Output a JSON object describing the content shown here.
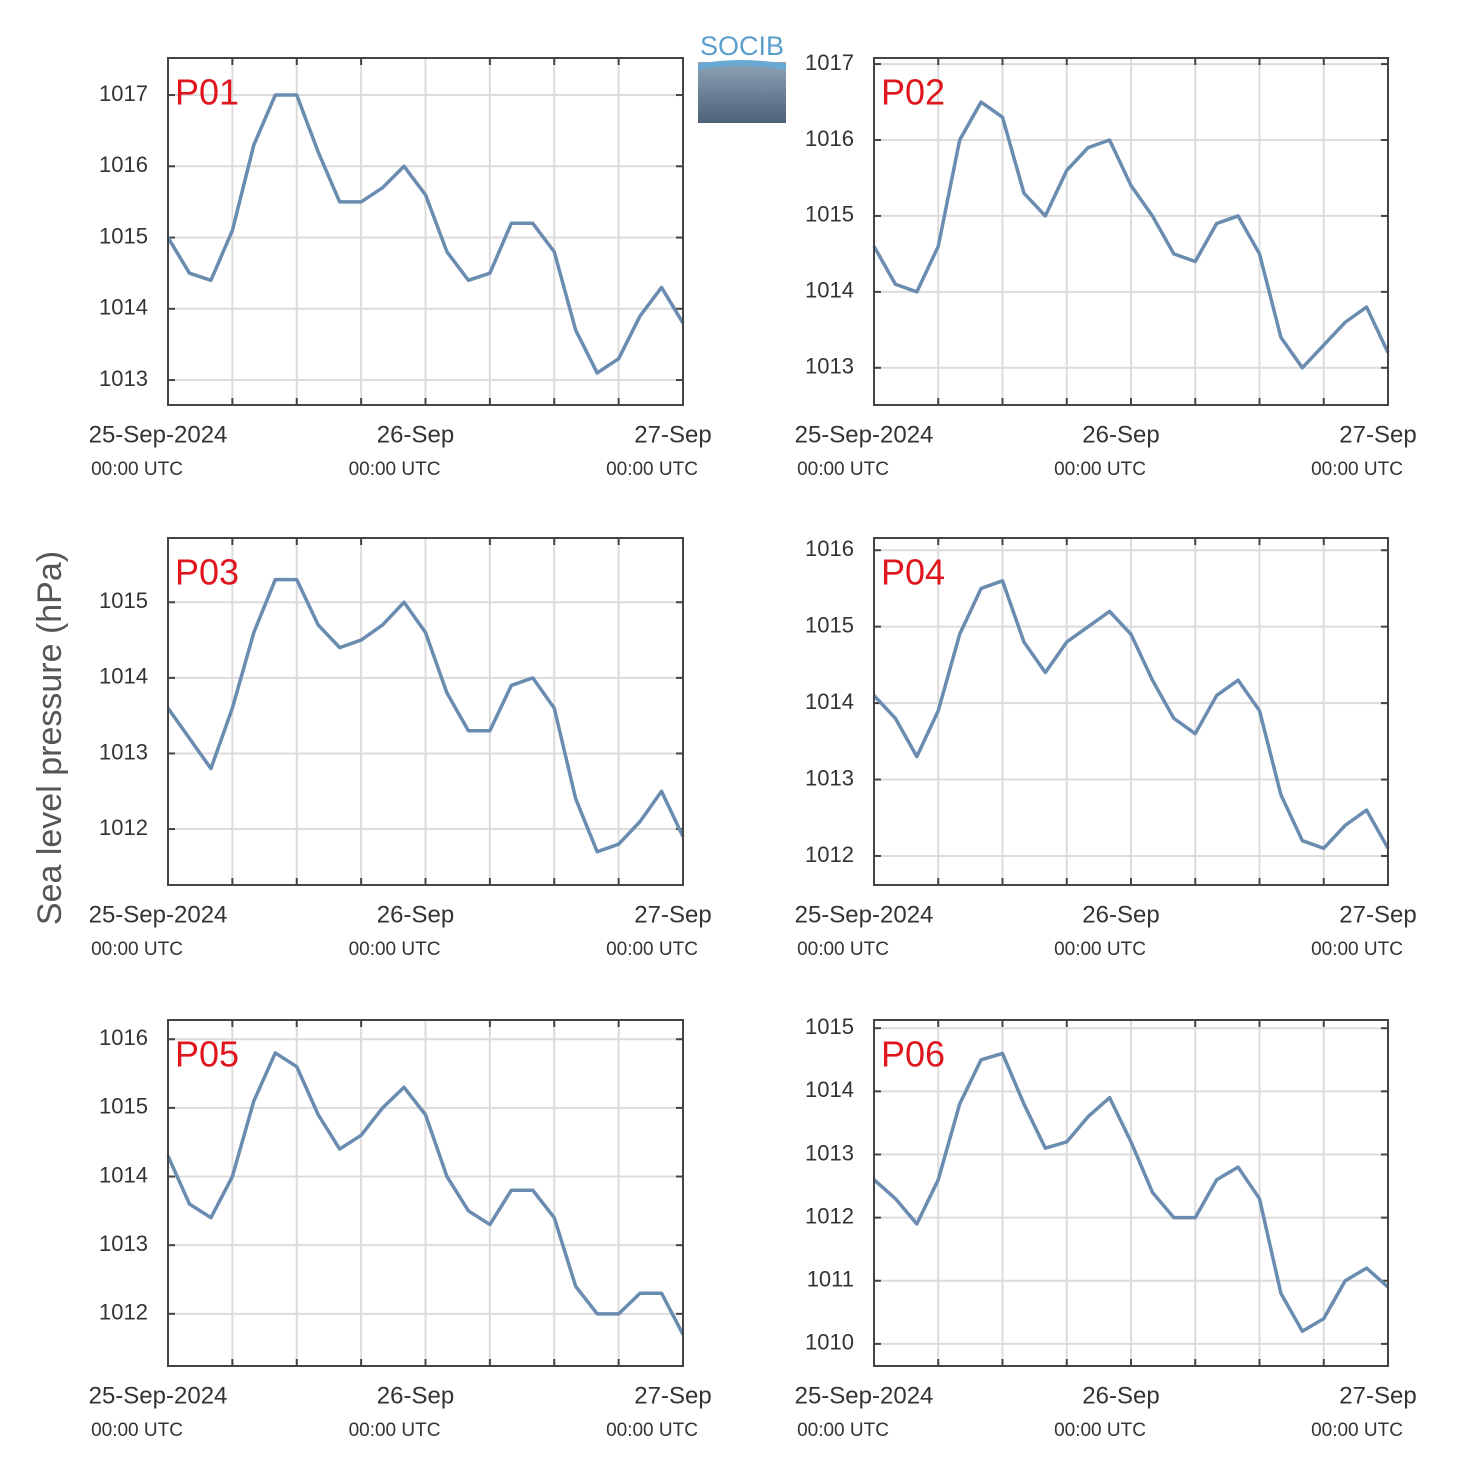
{
  "logo": "SOCIB",
  "ylabel": "Sea level pressure (hPa)",
  "chart_data": [
    {
      "type": "line",
      "title": "P01",
      "color": "#6a8cb0",
      "grid": true,
      "x": [
        0,
        2,
        4,
        6,
        8,
        10,
        12,
        14,
        16,
        18,
        20,
        22,
        24,
        26,
        28,
        30,
        32,
        34,
        36,
        38,
        40,
        42,
        44,
        46,
        48
      ],
      "values": [
        1015.0,
        1014.5,
        1014.4,
        1015.1,
        1016.3,
        1017.0,
        1017.0,
        1016.2,
        1015.5,
        1015.5,
        1015.7,
        1016.0,
        1015.6,
        1014.8,
        1014.4,
        1014.5,
        1015.2,
        1015.2,
        1014.8,
        1013.7,
        1013.1,
        1013.3,
        1013.9,
        1014.3,
        1013.8
      ],
      "xlim": [
        0,
        48
      ],
      "xticks": [
        {
          "value": 0,
          "label": "25-Sep-2024"
        },
        {
          "value": 24,
          "label": "26-Sep"
        },
        {
          "value": 48,
          "label": "27-Sep"
        }
      ],
      "xtick_sublabels": [
        "00:00 UTC",
        "00:00 UTC",
        "00:00 UTC"
      ],
      "xminor_grid": [
        6,
        12,
        18,
        30,
        36,
        42
      ],
      "ylim": [
        1012.65,
        1017.52
      ],
      "yticks": [
        1013,
        1014,
        1015,
        1016,
        1017
      ]
    },
    {
      "type": "line",
      "title": "P02",
      "color": "#6a8cb0",
      "grid": true,
      "x": [
        0,
        2,
        4,
        6,
        8,
        10,
        12,
        14,
        16,
        18,
        20,
        22,
        24,
        26,
        28,
        30,
        32,
        34,
        36,
        38,
        40,
        42,
        44,
        46,
        48
      ],
      "values": [
        1014.6,
        1014.1,
        1014.0,
        1014.6,
        1016.0,
        1016.5,
        1016.3,
        1015.3,
        1015.0,
        1015.6,
        1015.9,
        1016.0,
        1015.4,
        1015.0,
        1014.5,
        1014.4,
        1014.9,
        1015.0,
        1014.5,
        1013.4,
        1013.0,
        1013.3,
        1013.6,
        1013.8,
        1013.2
      ],
      "xlim": [
        0,
        48
      ],
      "xticks": [
        {
          "value": 0,
          "label": "25-Sep-2024"
        },
        {
          "value": 24,
          "label": "26-Sep"
        },
        {
          "value": 48,
          "label": "27-Sep"
        }
      ],
      "xtick_sublabels": [
        "00:00 UTC",
        "00:00 UTC",
        "00:00 UTC"
      ],
      "xminor_grid": [
        6,
        12,
        18,
        30,
        36,
        42
      ],
      "ylim": [
        1012.51,
        1017.08
      ],
      "yticks": [
        1013,
        1014,
        1015,
        1016,
        1017
      ]
    },
    {
      "type": "line",
      "title": "P03",
      "color": "#6a8cb0",
      "grid": true,
      "x": [
        0,
        2,
        4,
        6,
        8,
        10,
        12,
        14,
        16,
        18,
        20,
        22,
        24,
        26,
        28,
        30,
        32,
        34,
        36,
        38,
        40,
        42,
        44,
        46,
        48
      ],
      "values": [
        1013.6,
        1013.2,
        1012.8,
        1013.6,
        1014.6,
        1015.3,
        1015.3,
        1014.7,
        1014.4,
        1014.5,
        1014.7,
        1015.0,
        1014.6,
        1013.8,
        1013.3,
        1013.3,
        1013.9,
        1014.0,
        1013.6,
        1012.4,
        1011.7,
        1011.8,
        1012.1,
        1012.5,
        1011.9
      ],
      "xlim": [
        0,
        48
      ],
      "xticks": [
        {
          "value": 0,
          "label": "25-Sep-2024"
        },
        {
          "value": 24,
          "label": "26-Sep"
        },
        {
          "value": 48,
          "label": "27-Sep"
        }
      ],
      "xtick_sublabels": [
        "00:00 UTC",
        "00:00 UTC",
        "00:00 UTC"
      ],
      "xminor_grid": [
        6,
        12,
        18,
        30,
        36,
        42
      ],
      "ylim": [
        1011.26,
        1015.85
      ],
      "yticks": [
        1012,
        1013,
        1014,
        1015
      ]
    },
    {
      "type": "line",
      "title": "P04",
      "color": "#6a8cb0",
      "grid": true,
      "x": [
        0,
        2,
        4,
        6,
        8,
        10,
        12,
        14,
        16,
        18,
        20,
        22,
        24,
        26,
        28,
        30,
        32,
        34,
        36,
        38,
        40,
        42,
        44,
        46,
        48
      ],
      "values": [
        1014.1,
        1013.8,
        1013.3,
        1013.9,
        1014.9,
        1015.5,
        1015.6,
        1014.8,
        1014.4,
        1014.8,
        1015.0,
        1015.2,
        1014.9,
        1014.3,
        1013.8,
        1013.6,
        1014.1,
        1014.3,
        1013.9,
        1012.8,
        1012.2,
        1012.1,
        1012.4,
        1012.6,
        1012.1
      ],
      "xlim": [
        0,
        48
      ],
      "xticks": [
        {
          "value": 0,
          "label": "25-Sep-2024"
        },
        {
          "value": 24,
          "label": "26-Sep"
        },
        {
          "value": 48,
          "label": "27-Sep"
        }
      ],
      "xtick_sublabels": [
        "00:00 UTC",
        "00:00 UTC",
        "00:00 UTC"
      ],
      "xminor_grid": [
        6,
        12,
        18,
        30,
        36,
        42
      ],
      "ylim": [
        1011.62,
        1016.16
      ],
      "yticks": [
        1012,
        1013,
        1014,
        1015,
        1016
      ]
    },
    {
      "type": "line",
      "title": "P05",
      "color": "#6a8cb0",
      "grid": true,
      "x": [
        0,
        2,
        4,
        6,
        8,
        10,
        12,
        14,
        16,
        18,
        20,
        22,
        24,
        26,
        28,
        30,
        32,
        34,
        36,
        38,
        40,
        42,
        44,
        46,
        48
      ],
      "values": [
        1014.3,
        1013.6,
        1013.4,
        1014.0,
        1015.1,
        1015.8,
        1015.6,
        1014.9,
        1014.4,
        1014.6,
        1015.0,
        1015.3,
        1014.9,
        1014.0,
        1013.5,
        1013.3,
        1013.8,
        1013.8,
        1013.4,
        1012.4,
        1012.0,
        1012.0,
        1012.3,
        1012.3,
        1011.7
      ],
      "xlim": [
        0,
        48
      ],
      "xticks": [
        {
          "value": 0,
          "label": "25-Sep-2024"
        },
        {
          "value": 24,
          "label": "26-Sep"
        },
        {
          "value": 48,
          "label": "27-Sep"
        }
      ],
      "xtick_sublabels": [
        "00:00 UTC",
        "00:00 UTC",
        "00:00 UTC"
      ],
      "xminor_grid": [
        6,
        12,
        18,
        30,
        36,
        42
      ],
      "ylim": [
        1011.24,
        1016.28
      ],
      "yticks": [
        1012,
        1013,
        1014,
        1015,
        1016
      ]
    },
    {
      "type": "line",
      "title": "P06",
      "color": "#6a8cb0",
      "grid": true,
      "x": [
        0,
        2,
        4,
        6,
        8,
        10,
        12,
        14,
        16,
        18,
        20,
        22,
        24,
        26,
        28,
        30,
        32,
        34,
        36,
        38,
        40,
        42,
        44,
        46,
        48
      ],
      "values": [
        1012.6,
        1012.3,
        1011.9,
        1012.6,
        1013.8,
        1014.5,
        1014.6,
        1013.8,
        1013.1,
        1013.2,
        1013.6,
        1013.9,
        1013.2,
        1012.4,
        1012.0,
        1012.0,
        1012.6,
        1012.8,
        1012.3,
        1010.8,
        1010.2,
        1010.4,
        1011.0,
        1011.2,
        1010.9
      ],
      "xlim": [
        0,
        48
      ],
      "xticks": [
        {
          "value": 0,
          "label": "25-Sep-2024"
        },
        {
          "value": 24,
          "label": "26-Sep"
        },
        {
          "value": 48,
          "label": "27-Sep"
        }
      ],
      "xtick_sublabels": [
        "00:00 UTC",
        "00:00 UTC",
        "00:00 UTC"
      ],
      "xminor_grid": [
        6,
        12,
        18,
        30,
        36,
        42
      ],
      "ylim": [
        1009.65,
        1015.13
      ],
      "yticks": [
        1010,
        1011,
        1012,
        1013,
        1014,
        1015
      ]
    }
  ]
}
